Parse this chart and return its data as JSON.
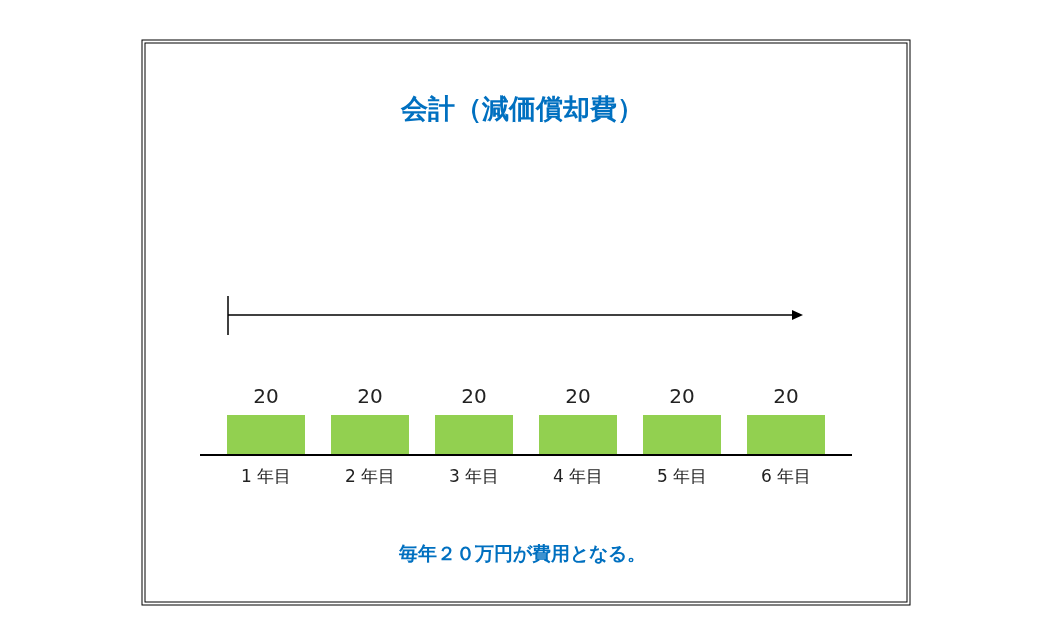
{
  "chart_data": {
    "type": "bar",
    "title": "会計（減価償却費）",
    "categories": [
      "1 年目",
      "2 年目",
      "3 年目",
      "4 年目",
      "5 年目",
      "6 年目"
    ],
    "values": [
      20,
      20,
      20,
      20,
      20,
      20
    ],
    "color": "#92d050",
    "data_labels": true,
    "annotations": [
      "毎年２０万円が費用となる。"
    ]
  }
}
